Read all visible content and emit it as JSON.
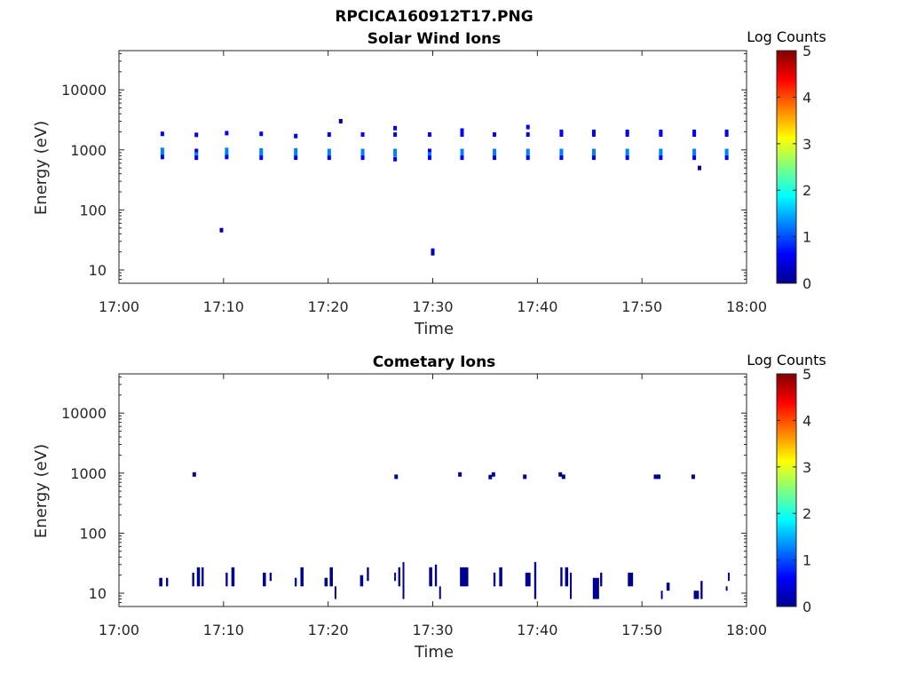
{
  "figure_title": "RPCICA160912T17.PNG",
  "colormap": [
    "#00008f",
    "#0000ff",
    "#0080ff",
    "#00ffff",
    "#80ff80",
    "#ffff00",
    "#ff8000",
    "#ff0000",
    "#800000"
  ],
  "chart_data": [
    {
      "type": "heatmap",
      "title": "Solar Wind Ions",
      "xlabel": "Time",
      "ylabel": "Energy (eV)",
      "yscale": "log",
      "xlim_min": [
        0,
        60
      ],
      "ylim": [
        6,
        45000
      ],
      "xticks_min": [
        0,
        10,
        20,
        30,
        40,
        50,
        60
      ],
      "xtick_labels": [
        "17:00",
        "17:10",
        "17:20",
        "17:30",
        "17:40",
        "17:50",
        "18:00"
      ],
      "yticks": [
        10,
        100,
        1000,
        10000
      ],
      "ytick_labels": [
        "10",
        "100",
        "1000",
        "10000"
      ],
      "colorbar": {
        "label": "Log Counts",
        "range": [
          0,
          5
        ],
        "ticks": [
          "0",
          "1",
          "2",
          "3",
          "4",
          "5"
        ]
      },
      "points": [
        {
          "t": 4.15,
          "e": 1850,
          "c": 0.8
        },
        {
          "t": 4.15,
          "e": 1000,
          "c": 1.0
        },
        {
          "t": 4.15,
          "e": 870,
          "c": 1.1
        },
        {
          "t": 4.15,
          "e": 760,
          "c": 0.6
        },
        {
          "t": 7.4,
          "e": 1780,
          "c": 0.6
        },
        {
          "t": 7.4,
          "e": 960,
          "c": 0.9
        },
        {
          "t": 7.4,
          "e": 840,
          "c": 1.0
        },
        {
          "t": 7.4,
          "e": 740,
          "c": 0.6
        },
        {
          "t": 10.3,
          "e": 1900,
          "c": 0.6
        },
        {
          "t": 10.3,
          "e": 1000,
          "c": 1.2
        },
        {
          "t": 10.3,
          "e": 870,
          "c": 1.4
        },
        {
          "t": 10.3,
          "e": 760,
          "c": 0.6
        },
        {
          "t": 13.6,
          "e": 1850,
          "c": 0.6
        },
        {
          "t": 13.6,
          "e": 980,
          "c": 1.1
        },
        {
          "t": 13.6,
          "e": 850,
          "c": 1.3
        },
        {
          "t": 13.6,
          "e": 740,
          "c": 0.6
        },
        {
          "t": 16.9,
          "e": 1700,
          "c": 0.6
        },
        {
          "t": 16.9,
          "e": 980,
          "c": 1.0
        },
        {
          "t": 16.9,
          "e": 850,
          "c": 1.1
        },
        {
          "t": 16.9,
          "e": 740,
          "c": 0.5
        },
        {
          "t": 20.1,
          "e": 1800,
          "c": 0.5
        },
        {
          "t": 20.1,
          "e": 960,
          "c": 1.0
        },
        {
          "t": 20.1,
          "e": 840,
          "c": 1.1
        },
        {
          "t": 20.1,
          "e": 740,
          "c": 0.6
        },
        {
          "t": 23.3,
          "e": 1800,
          "c": 0.5
        },
        {
          "t": 23.3,
          "e": 960,
          "c": 1.0
        },
        {
          "t": 23.3,
          "e": 840,
          "c": 1.1
        },
        {
          "t": 23.3,
          "e": 740,
          "c": 0.6
        },
        {
          "t": 26.4,
          "e": 2300,
          "c": 0.4
        },
        {
          "t": 26.4,
          "e": 1800,
          "c": 0.8
        },
        {
          "t": 26.4,
          "e": 960,
          "c": 1.0
        },
        {
          "t": 26.4,
          "e": 840,
          "c": 1.1
        },
        {
          "t": 26.4,
          "e": 700,
          "c": 0.6
        },
        {
          "t": 29.7,
          "e": 1800,
          "c": 0.6
        },
        {
          "t": 29.7,
          "e": 960,
          "c": 0.9
        },
        {
          "t": 29.7,
          "e": 840,
          "c": 1.0
        },
        {
          "t": 29.7,
          "e": 740,
          "c": 0.6
        },
        {
          "t": 32.8,
          "e": 2100,
          "c": 0.5
        },
        {
          "t": 32.8,
          "e": 1800,
          "c": 0.8
        },
        {
          "t": 32.8,
          "e": 960,
          "c": 1.0
        },
        {
          "t": 32.8,
          "e": 840,
          "c": 1.1
        },
        {
          "t": 32.8,
          "e": 740,
          "c": 0.6
        },
        {
          "t": 35.9,
          "e": 1800,
          "c": 0.6
        },
        {
          "t": 35.9,
          "e": 960,
          "c": 1.0
        },
        {
          "t": 35.9,
          "e": 840,
          "c": 1.0
        },
        {
          "t": 35.9,
          "e": 740,
          "c": 0.6
        },
        {
          "t": 39.1,
          "e": 2400,
          "c": 0.5
        },
        {
          "t": 39.1,
          "e": 1800,
          "c": 0.8
        },
        {
          "t": 39.1,
          "e": 960,
          "c": 1.1
        },
        {
          "t": 39.1,
          "e": 840,
          "c": 1.2
        },
        {
          "t": 39.1,
          "e": 740,
          "c": 0.6
        },
        {
          "t": 42.3,
          "e": 2000,
          "c": 0.5
        },
        {
          "t": 42.3,
          "e": 1800,
          "c": 0.7
        },
        {
          "t": 42.3,
          "e": 960,
          "c": 1.0
        },
        {
          "t": 42.3,
          "e": 840,
          "c": 1.1
        },
        {
          "t": 42.3,
          "e": 740,
          "c": 0.6
        },
        {
          "t": 45.4,
          "e": 2000,
          "c": 0.5
        },
        {
          "t": 45.4,
          "e": 1800,
          "c": 0.7
        },
        {
          "t": 45.4,
          "e": 960,
          "c": 1.1
        },
        {
          "t": 45.4,
          "e": 840,
          "c": 1.3
        },
        {
          "t": 45.4,
          "e": 740,
          "c": 0.6
        },
        {
          "t": 48.6,
          "e": 2000,
          "c": 0.5
        },
        {
          "t": 48.6,
          "e": 1800,
          "c": 0.7
        },
        {
          "t": 48.6,
          "e": 960,
          "c": 1.1
        },
        {
          "t": 48.6,
          "e": 840,
          "c": 1.3
        },
        {
          "t": 48.6,
          "e": 740,
          "c": 0.6
        },
        {
          "t": 51.8,
          "e": 2000,
          "c": 0.5
        },
        {
          "t": 51.8,
          "e": 1800,
          "c": 0.7
        },
        {
          "t": 51.8,
          "e": 960,
          "c": 1.0
        },
        {
          "t": 51.8,
          "e": 840,
          "c": 1.2
        },
        {
          "t": 51.8,
          "e": 740,
          "c": 0.6
        },
        {
          "t": 55.0,
          "e": 2000,
          "c": 0.5
        },
        {
          "t": 55.0,
          "e": 1800,
          "c": 0.7
        },
        {
          "t": 55.0,
          "e": 960,
          "c": 1.0
        },
        {
          "t": 55.0,
          "e": 840,
          "c": 1.1
        },
        {
          "t": 55.0,
          "e": 740,
          "c": 0.6
        },
        {
          "t": 58.1,
          "e": 2000,
          "c": 0.5
        },
        {
          "t": 58.1,
          "e": 1800,
          "c": 0.7
        },
        {
          "t": 58.1,
          "e": 960,
          "c": 1.0
        },
        {
          "t": 58.1,
          "e": 840,
          "c": 1.2
        },
        {
          "t": 58.1,
          "e": 740,
          "c": 0.6
        },
        {
          "t": 21.2,
          "e": 3000,
          "c": 0.3
        },
        {
          "t": 9.8,
          "e": 46,
          "c": 0.3
        },
        {
          "t": 30.0,
          "e": 21,
          "c": 0.4
        },
        {
          "t": 30.0,
          "e": 19,
          "c": 0.3
        },
        {
          "t": 55.5,
          "e": 500,
          "c": 0.3
        }
      ]
    },
    {
      "type": "heatmap",
      "title": "Cometary Ions",
      "xlabel": "Time",
      "ylabel": "Energy (eV)",
      "yscale": "log",
      "xlim_min": [
        0,
        60
      ],
      "ylim": [
        6,
        45000
      ],
      "xticks_min": [
        0,
        10,
        20,
        30,
        40,
        50,
        60
      ],
      "xtick_labels": [
        "17:00",
        "17:10",
        "17:20",
        "17:30",
        "17:40",
        "17:50",
        "18:00"
      ],
      "yticks": [
        10,
        100,
        1000,
        10000
      ],
      "ytick_labels": [
        "10",
        "100",
        "1000",
        "10000"
      ],
      "colorbar": {
        "label": "Log Counts",
        "range": [
          0,
          5
        ],
        "ticks": [
          "0",
          "1",
          "2",
          "3",
          "4",
          "5"
        ]
      },
      "points": [
        {
          "t": 7.2,
          "e": 950,
          "c": 0.3
        },
        {
          "t": 26.5,
          "e": 870,
          "c": 0.3
        },
        {
          "t": 32.6,
          "e": 950,
          "c": 0.3
        },
        {
          "t": 35.5,
          "e": 860,
          "c": 0.3
        },
        {
          "t": 35.8,
          "e": 950,
          "c": 0.3
        },
        {
          "t": 38.8,
          "e": 870,
          "c": 0.3
        },
        {
          "t": 42.2,
          "e": 950,
          "c": 0.3
        },
        {
          "t": 42.5,
          "e": 870,
          "c": 0.3
        },
        {
          "t": 51.3,
          "e": 870,
          "c": 0.3
        },
        {
          "t": 51.6,
          "e": 870,
          "c": 0.3
        },
        {
          "t": 54.9,
          "e": 870,
          "c": 0.3
        }
      ],
      "segments": [
        {
          "t": 4.0,
          "w": 0.3,
          "e0": 13,
          "e1": 18,
          "c": 0.3
        },
        {
          "t": 4.6,
          "w": 0.2,
          "e0": 13,
          "e1": 18,
          "c": 0.3
        },
        {
          "t": 7.1,
          "w": 0.2,
          "e0": 13,
          "e1": 22,
          "c": 0.3
        },
        {
          "t": 7.6,
          "w": 0.3,
          "e0": 13,
          "e1": 27,
          "c": 0.3
        },
        {
          "t": 8.0,
          "w": 0.2,
          "e0": 13,
          "e1": 27,
          "c": 0.3
        },
        {
          "t": 10.3,
          "w": 0.2,
          "e0": 13,
          "e1": 22,
          "c": 0.3
        },
        {
          "t": 10.9,
          "w": 0.3,
          "e0": 13,
          "e1": 27,
          "c": 0.3
        },
        {
          "t": 13.9,
          "w": 0.3,
          "e0": 13,
          "e1": 22,
          "c": 0.3
        },
        {
          "t": 14.5,
          "w": 0.2,
          "e0": 16,
          "e1": 22,
          "c": 0.3
        },
        {
          "t": 16.9,
          "w": 0.2,
          "e0": 13,
          "e1": 18,
          "c": 0.3
        },
        {
          "t": 17.5,
          "w": 0.3,
          "e0": 13,
          "e1": 27,
          "c": 0.3
        },
        {
          "t": 19.8,
          "w": 0.3,
          "e0": 13,
          "e1": 18,
          "c": 0.3
        },
        {
          "t": 20.3,
          "w": 0.3,
          "e0": 13,
          "e1": 27,
          "c": 0.3
        },
        {
          "t": 20.7,
          "w": 0.15,
          "e0": 8,
          "e1": 13,
          "c": 0.3
        },
        {
          "t": 23.2,
          "w": 0.3,
          "e0": 13,
          "e1": 20,
          "c": 0.3
        },
        {
          "t": 23.8,
          "w": 0.2,
          "e0": 16,
          "e1": 27,
          "c": 0.3
        },
        {
          "t": 26.4,
          "w": 0.15,
          "e0": 16,
          "e1": 22,
          "c": 0.3
        },
        {
          "t": 26.8,
          "w": 0.2,
          "e0": 13,
          "e1": 27,
          "c": 0.3
        },
        {
          "t": 27.2,
          "w": 0.15,
          "e0": 8,
          "e1": 33,
          "c": 0.3
        },
        {
          "t": 29.8,
          "w": 0.3,
          "e0": 13,
          "e1": 27,
          "c": 0.3
        },
        {
          "t": 30.3,
          "w": 0.2,
          "e0": 13,
          "e1": 30,
          "c": 0.3
        },
        {
          "t": 30.7,
          "w": 0.15,
          "e0": 8,
          "e1": 13,
          "c": 0.3
        },
        {
          "t": 33.0,
          "w": 0.8,
          "e0": 13,
          "e1": 27,
          "c": 0.3
        },
        {
          "t": 35.9,
          "w": 0.2,
          "e0": 13,
          "e1": 22,
          "c": 0.3
        },
        {
          "t": 36.5,
          "w": 0.3,
          "e0": 13,
          "e1": 27,
          "c": 0.3
        },
        {
          "t": 39.1,
          "w": 0.5,
          "e0": 13,
          "e1": 22,
          "c": 0.3
        },
        {
          "t": 39.8,
          "w": 0.2,
          "e0": 8,
          "e1": 33,
          "c": 0.3
        },
        {
          "t": 42.3,
          "w": 0.2,
          "e0": 13,
          "e1": 27,
          "c": 0.3
        },
        {
          "t": 42.8,
          "w": 0.3,
          "e0": 13,
          "e1": 27,
          "c": 0.3
        },
        {
          "t": 43.2,
          "w": 0.15,
          "e0": 8,
          "e1": 22,
          "c": 0.3
        },
        {
          "t": 45.6,
          "w": 0.6,
          "e0": 8,
          "e1": 18,
          "c": 0.3
        },
        {
          "t": 46.1,
          "w": 0.2,
          "e0": 13,
          "e1": 22,
          "c": 0.3
        },
        {
          "t": 48.9,
          "w": 0.5,
          "e0": 13,
          "e1": 22,
          "c": 0.3
        },
        {
          "t": 51.9,
          "w": 0.15,
          "e0": 8,
          "e1": 11,
          "c": 0.3
        },
        {
          "t": 52.5,
          "w": 0.3,
          "e0": 11,
          "e1": 15,
          "c": 0.3
        },
        {
          "t": 55.2,
          "w": 0.5,
          "e0": 8,
          "e1": 11,
          "c": 0.3
        },
        {
          "t": 55.7,
          "w": 0.2,
          "e0": 8,
          "e1": 16,
          "c": 0.3
        },
        {
          "t": 58.1,
          "w": 0.15,
          "e0": 11,
          "e1": 13,
          "c": 0.3
        },
        {
          "t": 58.3,
          "w": 0.15,
          "e0": 16,
          "e1": 22,
          "c": 0.3
        }
      ]
    }
  ]
}
